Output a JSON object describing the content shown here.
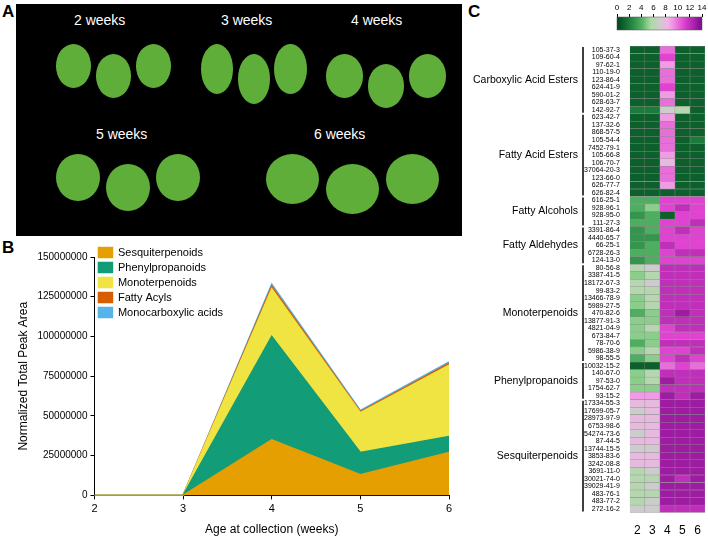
{
  "panel_labels": [
    "A",
    "B",
    "C"
  ],
  "photo_panel": {
    "labels": [
      "2 weeks",
      "3 weeks",
      "4 weeks",
      "5 weeks",
      "6 weeks"
    ]
  },
  "chart_data": [
    {
      "type": "area",
      "stacked": true,
      "x": [
        2,
        3,
        4,
        5,
        6
      ],
      "xlim": [
        2,
        6
      ],
      "xticks": [
        2,
        3,
        4,
        5,
        6
      ],
      "ylim": [
        0,
        150000000
      ],
      "yticks": [
        0,
        25000000,
        50000000,
        75000000,
        100000000,
        125000000,
        150000000
      ],
      "x_label": "Age at collection (weeks)",
      "y_label": "Normalized Total Peak Area",
      "legend": "top-left",
      "grid": false,
      "series": [
        {
          "name": "Sesquiterpenoids",
          "color": "#e69f00",
          "values": [
            0,
            0,
            35000000,
            13000000,
            27000000
          ]
        },
        {
          "name": "Phenylpropanoids",
          "color": "#129c78",
          "values": [
            0,
            0,
            65000000,
            14000000,
            10000000
          ]
        },
        {
          "name": "Monoterpenoids",
          "color": "#f0e442",
          "values": [
            0,
            0,
            30000000,
            25000000,
            45000000
          ]
        },
        {
          "name": "Fatty Acyls",
          "color": "#d55e00",
          "values": [
            0,
            0,
            1500000,
            700000,
            1000000
          ]
        },
        {
          "name": "Monocarboxylic acids",
          "color": "#56b4e9",
          "values": [
            0,
            0,
            1500000,
            700000,
            1000000
          ]
        }
      ]
    },
    {
      "type": "heatmap",
      "x": [
        2,
        3,
        4,
        5,
        6
      ],
      "xlim": [
        1.5,
        6.5
      ],
      "xticks": [
        2,
        3,
        4,
        5,
        6
      ],
      "colorbar": {
        "range": [
          0,
          14
        ],
        "ticks": [
          0,
          2,
          4,
          6,
          8,
          10,
          12,
          14
        ]
      },
      "groups": [
        {
          "name": "Carboxylic Acid Esters",
          "rows": [
            {
              "label": "105-37-3",
              "values": [
                1,
                1,
                10,
                1,
                1
              ]
            },
            {
              "label": "109-60-4",
              "values": [
                1,
                1,
                11,
                1,
                1
              ]
            },
            {
              "label": "97-62-1",
              "values": [
                1,
                1,
                9,
                1,
                1
              ]
            },
            {
              "label": "110-19-0",
              "values": [
                1,
                1,
                10,
                1,
                1
              ]
            },
            {
              "label": "123-86-4",
              "values": [
                1,
                1,
                10,
                1,
                1
              ]
            },
            {
              "label": "624-41-9",
              "values": [
                1,
                1,
                11,
                1,
                1
              ]
            },
            {
              "label": "590-01-2",
              "values": [
                1,
                1,
                9,
                1,
                1
              ]
            },
            {
              "label": "628-63-7",
              "values": [
                1,
                1,
                10,
                1,
                1
              ]
            },
            {
              "label": "142-92-7",
              "values": [
                2,
                2,
                7,
                6,
                1
              ]
            }
          ]
        },
        {
          "name": "Fatty Acid Esters",
          "rows": [
            {
              "label": "623-42-7",
              "values": [
                1,
                1,
                9,
                1,
                1
              ]
            },
            {
              "label": "137-32-6",
              "values": [
                1,
                1,
                10,
                1,
                1
              ]
            },
            {
              "label": "868-57-5",
              "values": [
                1,
                1,
                10,
                1,
                1
              ]
            },
            {
              "label": "105-54-4",
              "values": [
                1,
                1,
                10,
                1,
                2
              ]
            },
            {
              "label": "7452-79-1",
              "values": [
                1,
                1,
                10,
                1,
                1
              ]
            },
            {
              "label": "105-66-8",
              "values": [
                1,
                1,
                9,
                1,
                1
              ]
            },
            {
              "label": "106-70-7",
              "values": [
                1,
                1,
                8,
                1,
                1
              ]
            },
            {
              "label": "37064-20-3",
              "values": [
                1,
                1,
                10,
                1,
                1
              ]
            },
            {
              "label": "123-66-0",
              "values": [
                1,
                1,
                10,
                1,
                1
              ]
            },
            {
              "label": "626-77-7",
              "values": [
                1,
                1,
                9,
                1,
                1
              ]
            },
            {
              "label": "626-82-4",
              "values": [
                1,
                1,
                1,
                1,
                1
              ]
            }
          ]
        },
        {
          "name": "Fatty Alcohols",
          "rows": [
            {
              "label": "616-25-1",
              "values": [
                4,
                4,
                11,
                11,
                11
              ]
            },
            {
              "label": "928-96-1",
              "values": [
                4,
                5,
                11,
                12,
                11
              ]
            },
            {
              "label": "928-95-0",
              "values": [
                3,
                4,
                1,
                11,
                11
              ]
            },
            {
              "label": "111-27-3",
              "values": [
                4,
                4,
                11,
                11,
                12
              ]
            }
          ]
        },
        {
          "name": "Fatty Aldehydes",
          "rows": [
            {
              "label": "3391-86-4",
              "values": [
                3,
                4,
                11,
                12,
                11
              ]
            },
            {
              "label": "4440-65-7",
              "values": [
                3,
                3,
                11,
                11,
                11
              ]
            },
            {
              "label": "66-25-1",
              "values": [
                3,
                4,
                12,
                11,
                11
              ]
            },
            {
              "label": "6728-26-3",
              "values": [
                4,
                4,
                11,
                12,
                12
              ]
            },
            {
              "label": "124-13-0",
              "values": [
                3,
                4,
                11,
                11,
                11
              ]
            }
          ]
        },
        {
          "name": "Monoterpenoids",
          "rows": [
            {
              "label": "80-56-8",
              "values": [
                6,
                7,
                12,
                12,
                12
              ]
            },
            {
              "label": "3387-41-5",
              "values": [
                5,
                6,
                12,
                12,
                12
              ]
            },
            {
              "label": "18172-67-3",
              "values": [
                6,
                7,
                12,
                12,
                12
              ]
            },
            {
              "label": "99-83-2",
              "values": [
                6,
                6,
                12,
                12,
                12
              ]
            },
            {
              "label": "13466-78-9",
              "values": [
                5,
                6,
                12,
                12,
                12
              ]
            },
            {
              "label": "5989-27-5",
              "values": [
                5,
                6,
                12,
                12,
                12
              ]
            },
            {
              "label": "470-82-6",
              "values": [
                4,
                5,
                12,
                13,
                12
              ]
            },
            {
              "label": "13877-91-3",
              "values": [
                5,
                5,
                12,
                12,
                12
              ]
            },
            {
              "label": "4821-04-9",
              "values": [
                5,
                6,
                11,
                12,
                12
              ]
            },
            {
              "label": "673-84-7",
              "values": [
                5,
                5,
                11,
                11,
                11
              ]
            },
            {
              "label": "78-70-6",
              "values": [
                4,
                5,
                12,
                12,
                12
              ]
            },
            {
              "label": "5986-38-9",
              "values": [
                5,
                6,
                11,
                11,
                12
              ]
            },
            {
              "label": "98-55-5",
              "values": [
                4,
                5,
                11,
                12,
                11
              ]
            }
          ]
        },
        {
          "name": "Phenylpropanoids",
          "rows": [
            {
              "label": "10032-15-2",
              "values": [
                1,
                1,
                10,
                11,
                10
              ]
            },
            {
              "label": "140-67-0",
              "values": [
                5,
                6,
                12,
                12,
                12
              ]
            },
            {
              "label": "97-53-0",
              "values": [
                5,
                6,
                13,
                12,
                12
              ]
            },
            {
              "label": "1754-62-7",
              "values": [
                5,
                5,
                12,
                12,
                12
              ]
            },
            {
              "label": "93-15-2",
              "values": [
                9,
                9,
                13,
                12,
                13
              ]
            }
          ]
        },
        {
          "name": "Sesquiterpenoids",
          "rows": [
            {
              "label": "17334-55-3",
              "values": [
                8,
                8,
                13,
                13,
                13
              ]
            },
            {
              "label": "17699-05-7",
              "values": [
                7,
                8,
                13,
                13,
                13
              ]
            },
            {
              "label": "28973-97-9",
              "values": [
                8,
                8,
                13,
                13,
                13
              ]
            },
            {
              "label": "6753-98-6",
              "values": [
                8,
                8,
                13,
                13,
                13
              ]
            },
            {
              "label": "54274-73-6",
              "values": [
                7,
                8,
                13,
                13,
                13
              ]
            },
            {
              "label": "87-44-5",
              "values": [
                8,
                8,
                13,
                13,
                13
              ]
            },
            {
              "label": "13744-15-5",
              "values": [
                7,
                7,
                13,
                13,
                13
              ]
            },
            {
              "label": "3853-83-6",
              "values": [
                8,
                8,
                13,
                13,
                13
              ]
            },
            {
              "label": "3242-08-8",
              "values": [
                8,
                8,
                13,
                13,
                13
              ]
            },
            {
              "label": "3691-11-0",
              "values": [
                6,
                7,
                13,
                13,
                13
              ]
            },
            {
              "label": "30021-74-0",
              "values": [
                6,
                6,
                13,
                12,
                13
              ]
            },
            {
              "label": "39029-41-9",
              "values": [
                6,
                7,
                13,
                13,
                13
              ]
            },
            {
              "label": "483-76-1",
              "values": [
                6,
                6,
                13,
                13,
                13
              ]
            },
            {
              "label": "483-77-2",
              "values": [
                6,
                7,
                13,
                13,
                13
              ]
            },
            {
              "label": "272-16-2",
              "values": [
                7,
                7,
                12,
                12,
                12
              ]
            }
          ]
        }
      ]
    }
  ]
}
